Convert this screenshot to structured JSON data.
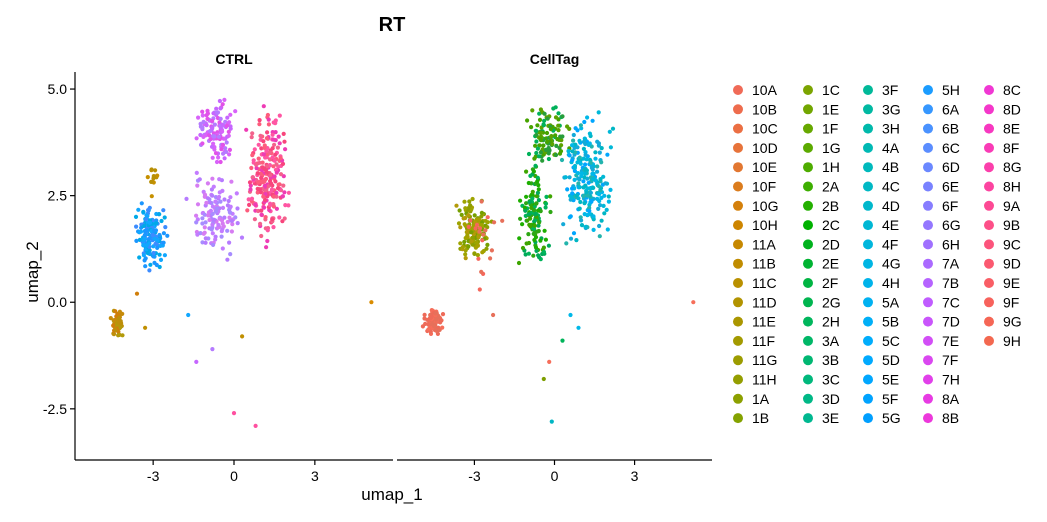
{
  "chart_data": {
    "type": "scatter",
    "title": "RT",
    "xlabel": "umap_1",
    "ylabel": "umap_2",
    "xlim": [
      -5.9,
      5.9
    ],
    "ylim": [
      -3.7,
      5.4
    ],
    "x_ticks": [
      -3,
      0,
      3
    ],
    "y_ticks": [
      5.0,
      2.5,
      0.0,
      -2.5
    ],
    "x_tick_labels": [
      "-3",
      "0",
      "3"
    ],
    "y_tick_labels": [
      "5.0",
      "2.5",
      "0.0",
      "-2.5"
    ],
    "grid": false,
    "legend_position": "right",
    "panels": [
      {
        "label": "CTRL",
        "clusters": [
          {
            "x": [
              -4.7,
              -4.0
            ],
            "y": [
              -0.9,
              -0.1
            ],
            "n": 60,
            "colors": [
              "#D07E0A",
              "#C68B0A",
              "#BD8F0A",
              "#B39A0A"
            ]
          },
          {
            "x": [
              -3.8,
              -2.4
            ],
            "y": [
              0.7,
              2.5
            ],
            "n": 170,
            "colors": [
              "#11A7FF",
              "#1B96FF",
              "#3C8CFF",
              "#00A9E8"
            ]
          },
          {
            "x": [
              -1.5,
              0.2
            ],
            "y": [
              3.0,
              5.0
            ],
            "n": 120,
            "colors": [
              "#C666FF",
              "#E152E9",
              "#B57BFF",
              "#D863F9"
            ]
          },
          {
            "x": [
              -2.0,
              0.5
            ],
            "y": [
              0.8,
              3.2
            ],
            "n": 130,
            "colors": [
              "#B67BFF",
              "#C37CFF",
              "#A78CFF",
              "#D67CF2"
            ]
          },
          {
            "x": [
              0.3,
              2.2
            ],
            "y": [
              1.0,
              4.9
            ],
            "n": 240,
            "colors": [
              "#F8457C",
              "#FF56A3",
              "#F3628C",
              "#FD5C7C",
              "#EE3BB5"
            ]
          },
          {
            "x": [
              -3.3,
              -2.7
            ],
            "y": [
              2.4,
              3.5
            ],
            "n": 12,
            "colors": [
              "#C69000",
              "#B88F05"
            ]
          }
        ],
        "outliers": [
          {
            "x": 5.1,
            "y": 0.0,
            "color": "#D98C00"
          },
          {
            "x": 0.0,
            "y": -2.6,
            "color": "#FF50A0"
          },
          {
            "x": 0.8,
            "y": -2.9,
            "color": "#FF50A0"
          },
          {
            "x": -0.8,
            "y": -1.1,
            "color": "#B57BFF"
          },
          {
            "x": -1.4,
            "y": -1.4,
            "color": "#C666FF"
          },
          {
            "x": 0.3,
            "y": -0.8,
            "color": "#C08F00"
          },
          {
            "x": -1.7,
            "y": -0.3,
            "color": "#11A7FF"
          },
          {
            "x": -3.3,
            "y": -0.6,
            "color": "#C08F00"
          },
          {
            "x": -3.6,
            "y": 0.2,
            "color": "#D07E0A"
          }
        ]
      },
      {
        "label": "CellTag",
        "clusters": [
          {
            "x": [
              -5.0,
              -4.1
            ],
            "y": [
              -0.9,
              0.0
            ],
            "n": 90,
            "colors": [
              "#EE6A58",
              "#F66E5A",
              "#E7705A"
            ]
          },
          {
            "x": [
              -3.8,
              -2.2
            ],
            "y": [
              0.8,
              2.6
            ],
            "n": 140,
            "colors": [
              "#A6A000",
              "#8E9E00",
              "#B39A0A",
              "#9EA400",
              "#769F00"
            ]
          },
          {
            "x": [
              -1.5,
              0.0
            ],
            "y": [
              0.5,
              3.5
            ],
            "n": 130,
            "colors": [
              "#1DAE00",
              "#2EA714",
              "#00B45A",
              "#3EA500",
              "#00A95A"
            ]
          },
          {
            "x": [
              -1.2,
              0.7
            ],
            "y": [
              3.0,
              5.0
            ],
            "n": 110,
            "colors": [
              "#47A300",
              "#5CA200",
              "#00B15A",
              "#289D3A"
            ]
          },
          {
            "x": [
              0.0,
              2.4
            ],
            "y": [
              1.0,
              4.7
            ],
            "n": 230,
            "colors": [
              "#00B6C4",
              "#00B8D8",
              "#14AAD8",
              "#00B8E8",
              "#00A6FF",
              "#23B4AC"
            ]
          },
          {
            "x": [
              -3.6,
              -1.8
            ],
            "y": [
              0.3,
              2.8
            ],
            "n": 18,
            "colors": [
              "#E7705A",
              "#F5675B"
            ]
          }
        ],
        "outliers": [
          {
            "x": 5.2,
            "y": 0.0,
            "color": "#F66E5A"
          },
          {
            "x": -0.2,
            "y": -1.4,
            "color": "#F66E5A"
          },
          {
            "x": -0.4,
            "y": -1.8,
            "color": "#7D9E00"
          },
          {
            "x": -0.1,
            "y": -2.8,
            "color": "#00B6C4"
          },
          {
            "x": 0.3,
            "y": -0.9,
            "color": "#00B45A"
          },
          {
            "x": 0.6,
            "y": -0.3,
            "color": "#00B8E8"
          },
          {
            "x": 0.9,
            "y": -0.6,
            "color": "#00B8E8"
          },
          {
            "x": -2.3,
            "y": -0.3,
            "color": "#E7705A"
          },
          {
            "x": -2.8,
            "y": 0.3,
            "color": "#F5675B"
          }
        ]
      }
    ],
    "legend": {
      "columns": [
        [
          {
            "label": "10A",
            "color": "#F06A57"
          },
          {
            "label": "10B",
            "color": "#EE6C4D"
          },
          {
            "label": "10C",
            "color": "#EB6F43"
          },
          {
            "label": "10D",
            "color": "#E7733A"
          },
          {
            "label": "10E",
            "color": "#E27731"
          },
          {
            "label": "10F",
            "color": "#DB7C1D"
          },
          {
            "label": "10G",
            "color": "#D4800B"
          },
          {
            "label": "10H",
            "color": "#CD8500"
          },
          {
            "label": "11A",
            "color": "#C68800"
          },
          {
            "label": "11B",
            "color": "#C08C00"
          },
          {
            "label": "11C",
            "color": "#B99000"
          },
          {
            "label": "11D",
            "color": "#B29300"
          },
          {
            "label": "11E",
            "color": "#AA9600"
          },
          {
            "label": "11F",
            "color": "#A39A00"
          },
          {
            "label": "11G",
            "color": "#9C9C00"
          },
          {
            "label": "11H",
            "color": "#949E00"
          },
          {
            "label": "1A",
            "color": "#8CA000"
          },
          {
            "label": "1B",
            "color": "#84A200"
          }
        ],
        [
          {
            "label": "1C",
            "color": "#7BA400"
          },
          {
            "label": "1E",
            "color": "#72A600"
          },
          {
            "label": "1F",
            "color": "#67A800"
          },
          {
            "label": "1G",
            "color": "#5CAA00"
          },
          {
            "label": "1H",
            "color": "#4EAC00"
          },
          {
            "label": "2A",
            "color": "#3DAE00"
          },
          {
            "label": "2B",
            "color": "#24B000"
          },
          {
            "label": "2C",
            "color": "#00B100"
          },
          {
            "label": "2D",
            "color": "#00B21D"
          },
          {
            "label": "2E",
            "color": "#00B332"
          },
          {
            "label": "2F",
            "color": "#00B442"
          },
          {
            "label": "2G",
            "color": "#00B54F"
          },
          {
            "label": "2H",
            "color": "#00B65C"
          },
          {
            "label": "3A",
            "color": "#00B767"
          },
          {
            "label": "3B",
            "color": "#00B772"
          },
          {
            "label": "3C",
            "color": "#00B87C"
          },
          {
            "label": "3D",
            "color": "#00B886"
          },
          {
            "label": "3E",
            "color": "#00B890"
          }
        ],
        [
          {
            "label": "3F",
            "color": "#00B999"
          },
          {
            "label": "3G",
            "color": "#00B9A2"
          },
          {
            "label": "3H",
            "color": "#00B9AB"
          },
          {
            "label": "4A",
            "color": "#00B9B4"
          },
          {
            "label": "4B",
            "color": "#00B9BC"
          },
          {
            "label": "4C",
            "color": "#00B8C4"
          },
          {
            "label": "4D",
            "color": "#00B8CC"
          },
          {
            "label": "4E",
            "color": "#00B7D4"
          },
          {
            "label": "4F",
            "color": "#00B6DC"
          },
          {
            "label": "4G",
            "color": "#00B5E3"
          },
          {
            "label": "4H",
            "color": "#00B3EA"
          },
          {
            "label": "5A",
            "color": "#00B1F1"
          },
          {
            "label": "5B",
            "color": "#00AFF7"
          },
          {
            "label": "5C",
            "color": "#00ADFC"
          },
          {
            "label": "5D",
            "color": "#00AAFF"
          },
          {
            "label": "5E",
            "color": "#00A7FF"
          },
          {
            "label": "5F",
            "color": "#00A3FF"
          },
          {
            "label": "5G",
            "color": "#009FFF"
          }
        ],
        [
          {
            "label": "5H",
            "color": "#1B9CFF"
          },
          {
            "label": "6A",
            "color": "#3697FF"
          },
          {
            "label": "6B",
            "color": "#4A92FF"
          },
          {
            "label": "6C",
            "color": "#5B8DFF"
          },
          {
            "label": "6D",
            "color": "#6B88FF"
          },
          {
            "label": "6E",
            "color": "#7982FF"
          },
          {
            "label": "6F",
            "color": "#877DFF"
          },
          {
            "label": "6G",
            "color": "#9477FF"
          },
          {
            "label": "6H",
            "color": "#A070FF"
          },
          {
            "label": "7A",
            "color": "#AB6AFF"
          },
          {
            "label": "7B",
            "color": "#B663FF"
          },
          {
            "label": "7C",
            "color": "#C05CFF"
          },
          {
            "label": "7D",
            "color": "#C955FB"
          },
          {
            "label": "7E",
            "color": "#D24EF6"
          },
          {
            "label": "7F",
            "color": "#DA47F0"
          },
          {
            "label": "7H",
            "color": "#E140EA"
          },
          {
            "label": "8A",
            "color": "#E73BE3"
          },
          {
            "label": "8B",
            "color": "#EC38DB"
          }
        ],
        [
          {
            "label": "8C",
            "color": "#F037D3"
          },
          {
            "label": "8D",
            "color": "#F437CA"
          },
          {
            "label": "8E",
            "color": "#F738C0"
          },
          {
            "label": "8F",
            "color": "#F93BB6"
          },
          {
            "label": "8G",
            "color": "#FB3FAB"
          },
          {
            "label": "8H",
            "color": "#FC44A0"
          },
          {
            "label": "9A",
            "color": "#FD4994"
          },
          {
            "label": "9B",
            "color": "#FD4F88"
          },
          {
            "label": "9C",
            "color": "#FC547C"
          },
          {
            "label": "9D",
            "color": "#FB5970"
          },
          {
            "label": "9E",
            "color": "#F95E65"
          },
          {
            "label": "9F",
            "color": "#F7625C"
          },
          {
            "label": "9G",
            "color": "#F56655"
          },
          {
            "label": "9H",
            "color": "#F36850"
          }
        ]
      ]
    }
  }
}
